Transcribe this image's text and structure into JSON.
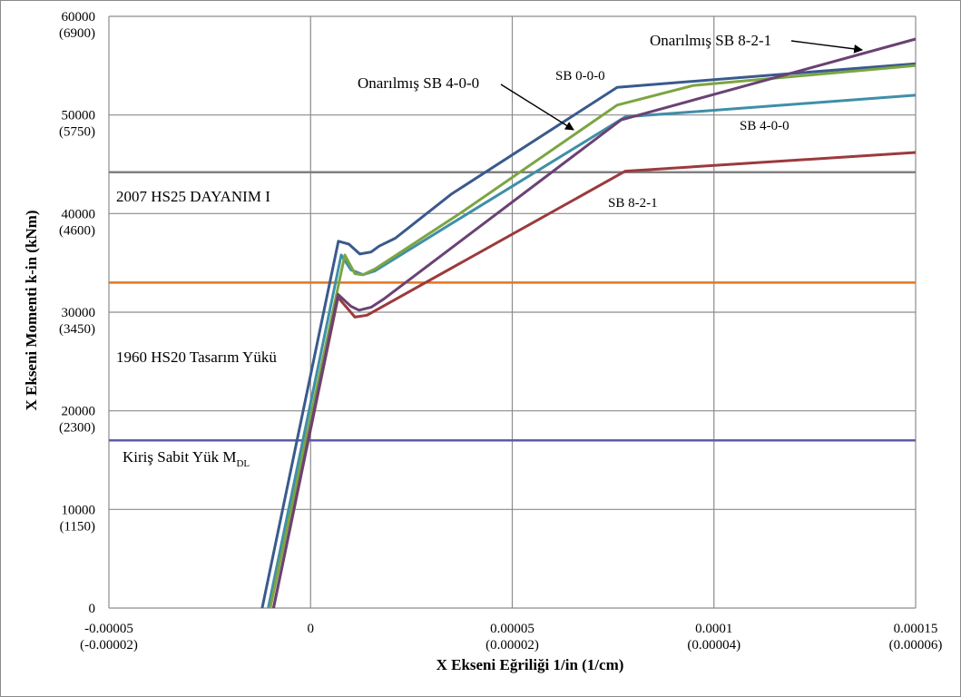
{
  "chart_data": {
    "type": "line",
    "title": "",
    "xlabel": "X Ekseni Eğriliği 1/in (1/cm)",
    "ylabel": "X Ekseni Momenti  k-in (kNm)",
    "xlim": [
      -5e-05,
      0.00015
    ],
    "ylim": [
      0,
      60000
    ],
    "grid": true,
    "x_ticks": [
      {
        "value": -5e-05,
        "label": "-0.00005",
        "sub": "(-0.00002)"
      },
      {
        "value": 0,
        "label": "0",
        "sub": ""
      },
      {
        "value": 5e-05,
        "label": "0.00005",
        "sub": "(0.00002)"
      },
      {
        "value": 0.0001,
        "label": "0.0001",
        "sub": "(0.00004)"
      },
      {
        "value": 0.00015,
        "label": "0.00015",
        "sub": "(0.00006)"
      }
    ],
    "y_ticks": [
      {
        "value": 0,
        "label": "0",
        "sub": ""
      },
      {
        "value": 10000,
        "label": "10000",
        "sub": "(1150)"
      },
      {
        "value": 20000,
        "label": "20000",
        "sub": "(2300)"
      },
      {
        "value": 30000,
        "label": "30000",
        "sub": "(3450)"
      },
      {
        "value": 40000,
        "label": "40000",
        "sub": "(4600)"
      },
      {
        "value": 50000,
        "label": "50000",
        "sub": "(5750)"
      },
      {
        "value": 60000,
        "label": "60000",
        "sub": "(6900)"
      }
    ],
    "series": [
      {
        "name": "SB 0-0-0",
        "color": "#3a5a8c",
        "x": [
          -1.2e-05,
          6.9e-06,
          9.5e-06,
          1.22e-05,
          1.5e-05,
          1.7e-05,
          2.1e-05,
          3.5e-05,
          7.6e-05,
          0.00015
        ],
        "y": [
          0,
          37200,
          36900,
          35900,
          36100,
          36700,
          37500,
          42000,
          52800,
          55200
        ]
      },
      {
        "name": "SB 4-0-0",
        "color": "#3f8fa8",
        "x": [
          -1.05e-05,
          7.6e-06,
          1e-05,
          1.3e-05,
          1.6e-05,
          3.5e-05,
          7.8e-05,
          0.00015
        ],
        "y": [
          0,
          35800,
          34300,
          33800,
          34200,
          39000,
          49800,
          52000
        ]
      },
      {
        "name": "SB 8-2-1",
        "color": "#9c3a3c",
        "x": [
          -9.2e-06,
          6.8e-06,
          1.1e-05,
          1.4e-05,
          7.8e-05,
          0.00015
        ],
        "y": [
          0,
          31500,
          29500,
          29700,
          44300,
          46200
        ]
      },
      {
        "name": "Onarılmış SB 4-0-0",
        "color": "#7ca542",
        "x": [
          -1e-05,
          8.5e-06,
          1.1e-05,
          1.3e-05,
          1.6e-05,
          3.7e-05,
          7.6e-05,
          9.5e-05,
          0.00015
        ],
        "y": [
          0,
          35800,
          33900,
          33800,
          34400,
          40000,
          51000,
          53000,
          55000
        ]
      },
      {
        "name": "Onarılmış SB 8-2-1",
        "color": "#6a4274",
        "x": [
          -9.2e-06,
          6.8e-06,
          1e-05,
          1.2e-05,
          1.5e-05,
          1.8e-05,
          7.7e-05,
          0.00015
        ],
        "y": [
          0,
          31800,
          30600,
          30200,
          30500,
          31300,
          49500,
          57700
        ]
      }
    ],
    "reference_lines": [
      {
        "name": "2007 HS25 DAYANIM I",
        "y": 44200,
        "color": "#808080"
      },
      {
        "name": "1960 HS20 Tasarım Yükü",
        "y": 33000,
        "color": "#e3751f"
      },
      {
        "name": "Kiriş Sabit Yük M",
        "subscript": "DL",
        "y": 17000,
        "color": "#5c5ca8"
      }
    ],
    "annotations": [
      {
        "text": "SB 0-0-0"
      },
      {
        "text": "SB 4-0-0"
      },
      {
        "text": "SB 8-2-1"
      },
      {
        "text": "Onarılmış SB 4-0-0"
      },
      {
        "text": "Onarılmış SB 8-2-1"
      }
    ]
  }
}
